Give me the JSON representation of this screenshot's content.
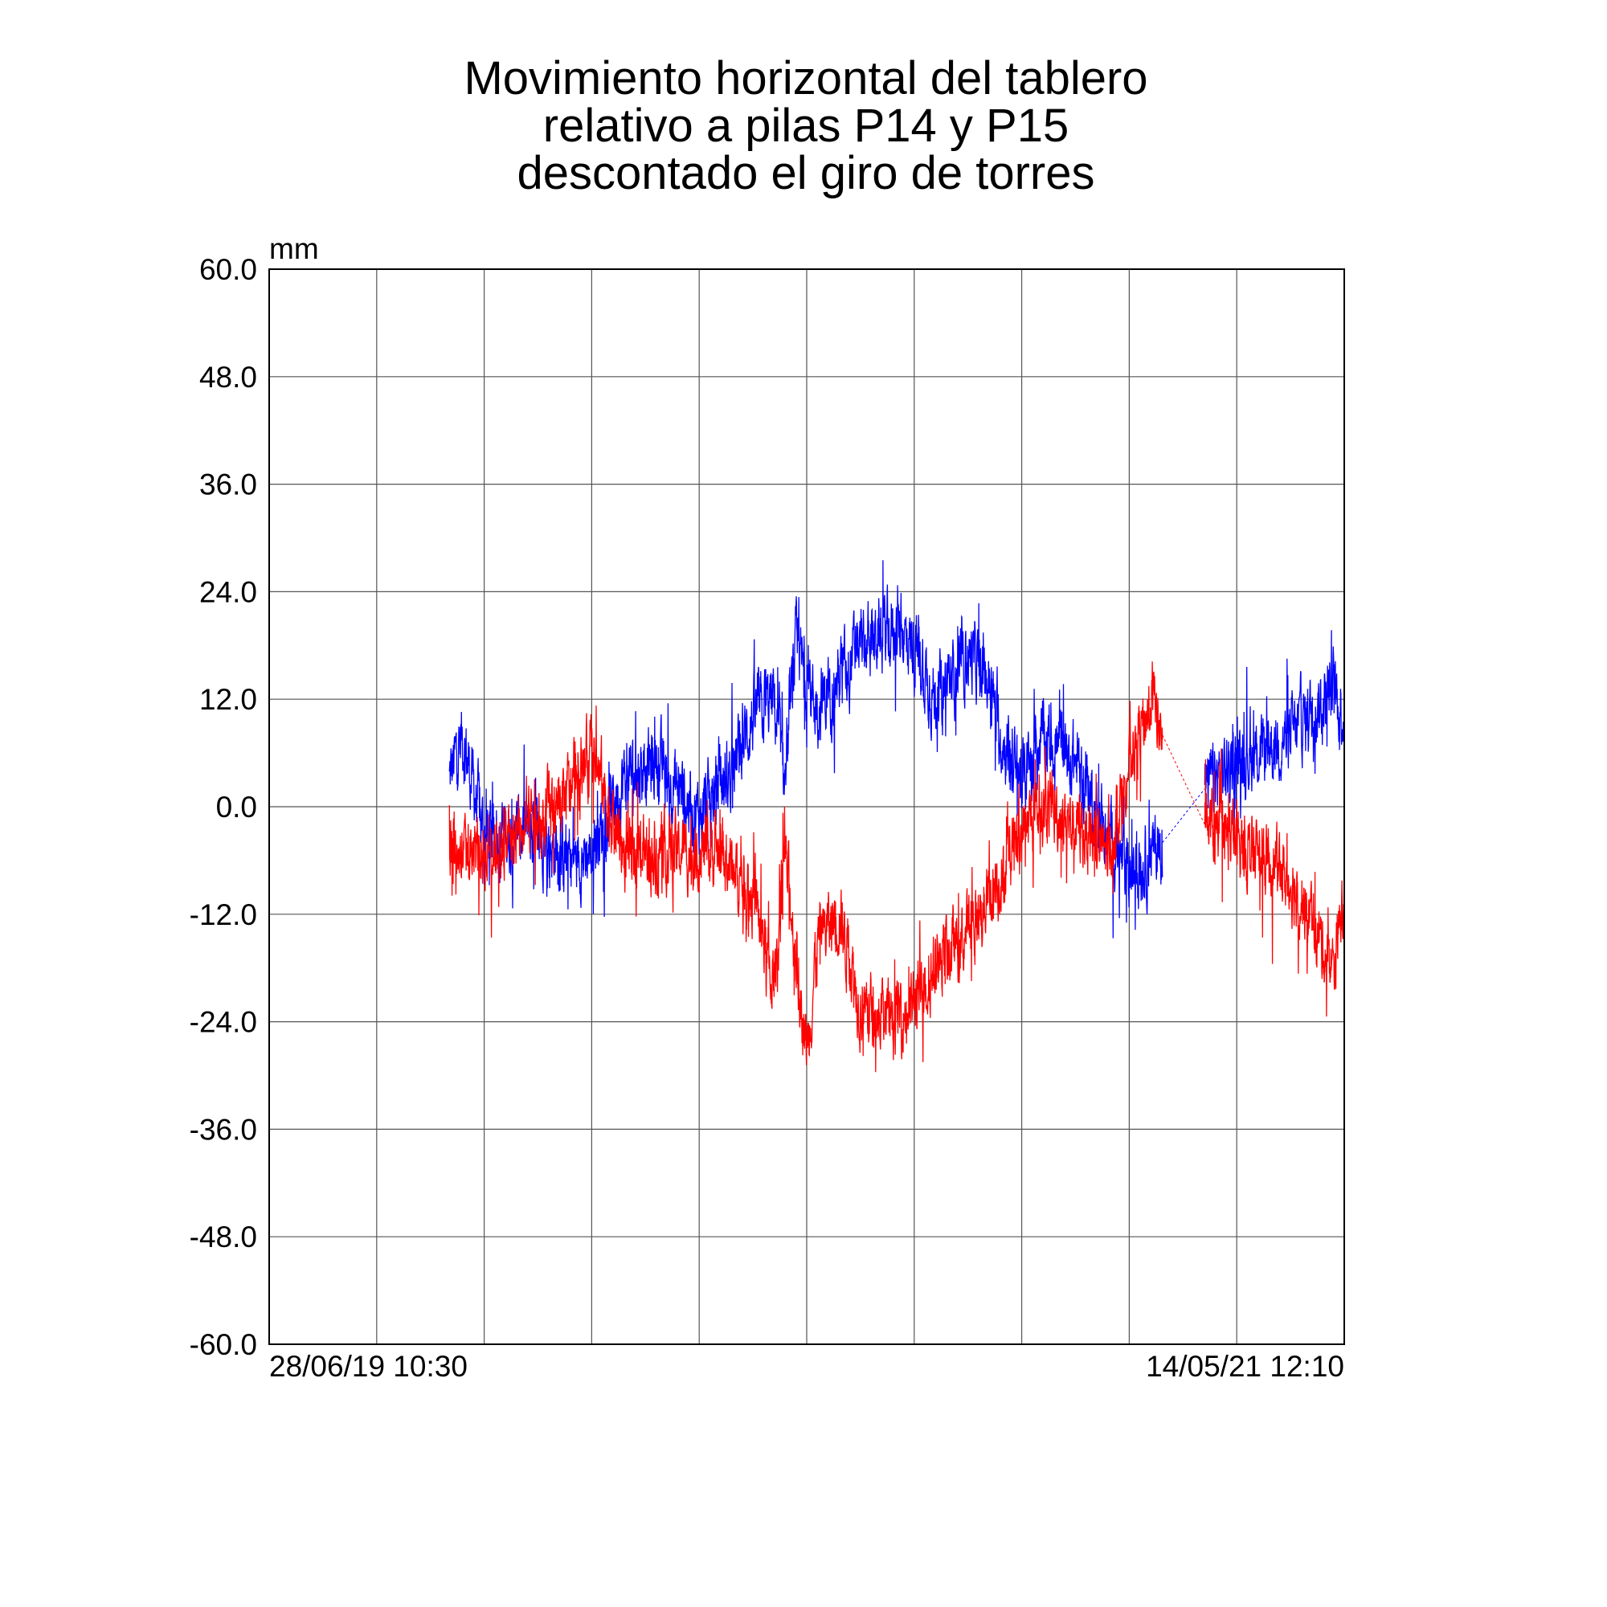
{
  "chart_data": {
    "type": "line",
    "title": [
      "Movimiento horizontal del tablero",
      "relativo a pilas P14 y P15",
      "descontado el giro de torres"
    ],
    "ylabel": "mm",
    "xlabel": "",
    "ylim": [
      -60,
      60
    ],
    "y_ticks": [
      "60.0",
      "48.0",
      "36.0",
      "24.0",
      "12.0",
      "0.0",
      "-12.0",
      "-24.0",
      "-36.0",
      "-48.0",
      "-60.0"
    ],
    "y_tick_values": [
      60,
      48,
      36,
      24,
      12,
      0,
      -12,
      -24,
      -36,
      -48,
      -60
    ],
    "x_start_label": "28/06/19 10:30",
    "x_end_label": "14/05/21 12:10",
    "x_unit": "days since start",
    "xlim": [
      0,
      686
    ],
    "x_gridlines": 10,
    "grid": true,
    "gap": [
      570,
      597
    ],
    "series": [
      {
        "name": "blue",
        "color": "#0000ff",
        "noise": 5,
        "points": [
          [
            115,
            3
          ],
          [
            123,
            8
          ],
          [
            137,
            -3
          ],
          [
            172,
            -3
          ],
          [
            192,
            -6
          ],
          [
            206,
            -5
          ],
          [
            226,
            3
          ],
          [
            247,
            5
          ],
          [
            274,
            -1
          ],
          [
            295,
            4
          ],
          [
            309,
            10
          ],
          [
            322,
            12
          ],
          [
            329,
            3
          ],
          [
            336,
            18
          ],
          [
            343,
            14
          ],
          [
            350,
            11
          ],
          [
            377,
            18
          ],
          [
            398,
            20
          ],
          [
            412,
            18
          ],
          [
            425,
            12
          ],
          [
            446,
            17
          ],
          [
            460,
            14
          ],
          [
            466,
            8
          ],
          [
            480,
            3
          ],
          [
            494,
            8
          ],
          [
            515,
            5
          ],
          [
            535,
            -3
          ],
          [
            549,
            -8
          ],
          [
            570,
            -4
          ],
          [
            597,
            2
          ],
          [
            617,
            5
          ],
          [
            652,
            8
          ],
          [
            679,
            13
          ],
          [
            686,
            10
          ]
        ]
      },
      {
        "name": "red",
        "color": "#ff0000",
        "noise": 5,
        "points": [
          [
            115,
            -5
          ],
          [
            137,
            -5
          ],
          [
            172,
            -2
          ],
          [
            192,
            2
          ],
          [
            206,
            6
          ],
          [
            226,
            -5
          ],
          [
            261,
            -5
          ],
          [
            288,
            -5
          ],
          [
            309,
            -10
          ],
          [
            322,
            -20
          ],
          [
            329,
            -5
          ],
          [
            343,
            -27
          ],
          [
            350,
            -15
          ],
          [
            364,
            -12
          ],
          [
            377,
            -22
          ],
          [
            398,
            -24
          ],
          [
            412,
            -22
          ],
          [
            425,
            -18
          ],
          [
            446,
            -14
          ],
          [
            466,
            -8
          ],
          [
            480,
            -3
          ],
          [
            494,
            0
          ],
          [
            515,
            -2
          ],
          [
            535,
            -5
          ],
          [
            549,
            5
          ],
          [
            563,
            12
          ],
          [
            570,
            8
          ],
          [
            597,
            -2
          ],
          [
            617,
            -4
          ],
          [
            652,
            -8
          ],
          [
            679,
            -18
          ],
          [
            686,
            -10
          ]
        ]
      }
    ]
  }
}
